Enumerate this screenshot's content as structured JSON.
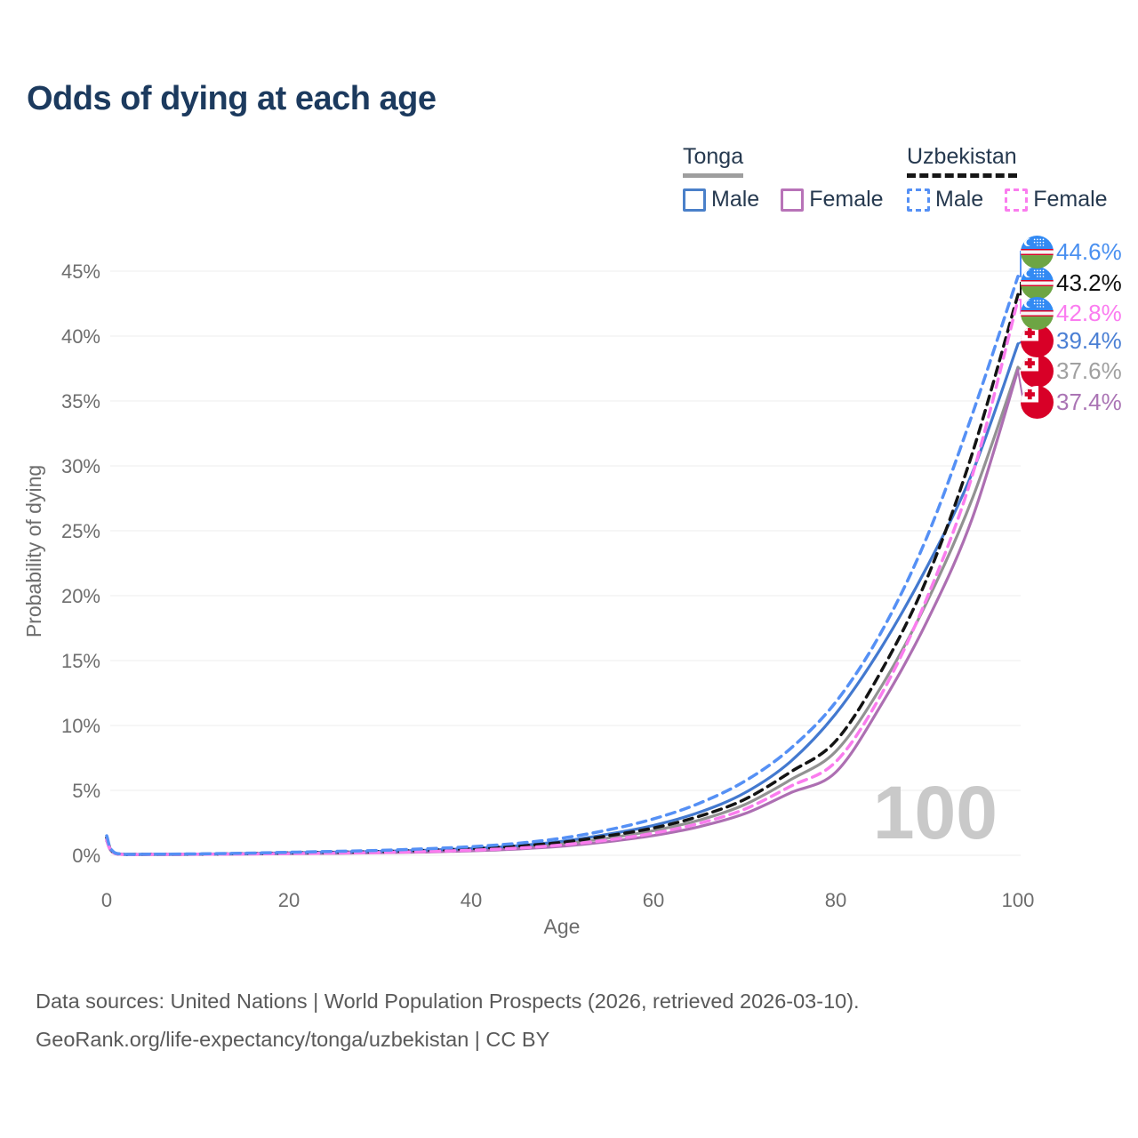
{
  "title": "Odds of dying at each age",
  "legend": {
    "tonga": {
      "label": "Tonga",
      "male": "Male",
      "female": "Female"
    },
    "uzbekistan": {
      "label": "Uzbekistan",
      "male": "Male",
      "female": "Female"
    }
  },
  "watermark": "100",
  "footer": {
    "line1": "Data sources: United Nations | World Population Prospects (2026, retrieved 2026-03-10).",
    "line2": "GeoRank.org/life-expectancy/tonga/uzbekistan | CC BY"
  },
  "colors": {
    "title_text": "#1c3a5e",
    "legend_text": "#26394f",
    "axis_text": "#6d6d6d",
    "gridline": "#ececec",
    "watermark": "#c9c9c9",
    "tonga_rule": "#9e9e9e",
    "uzbekistan_rule": "#161616"
  },
  "chart_data": {
    "type": "line",
    "title": "Odds of dying at each age",
    "xlabel": "Age",
    "ylabel": "Probability of dying",
    "xlim": [
      0,
      100
    ],
    "ylim_pct": [
      0,
      45
    ],
    "grid": "horizontal",
    "legend_position": "top-right",
    "xticks": [
      "0",
      "20",
      "40",
      "60",
      "80",
      "100"
    ],
    "xtick_values": [
      0,
      20,
      40,
      60,
      80,
      100
    ],
    "yticks": [
      "0%",
      "5%",
      "10%",
      "15%",
      "20%",
      "25%",
      "30%",
      "35%",
      "40%",
      "45%"
    ],
    "ytick_values": [
      0,
      5,
      10,
      15,
      20,
      25,
      30,
      35,
      40,
      45
    ],
    "ages": [
      0,
      1,
      5,
      10,
      15,
      20,
      25,
      30,
      35,
      40,
      45,
      50,
      55,
      60,
      65,
      70,
      75,
      80,
      85,
      90,
      95,
      100
    ],
    "series": [
      {
        "id": "tonga-both",
        "name": "Tonga Both sexes",
        "country": "Tonga",
        "sex": "Both sexes",
        "flag": "tonga",
        "dash": false,
        "color": "#929292",
        "label_color": "#a0a0a0",
        "end_value": "37.6%",
        "end_pct": 37.6,
        "label_row": 4,
        "values": [
          1.2,
          0.13,
          0.07,
          0.08,
          0.11,
          0.16,
          0.2,
          0.25,
          0.32,
          0.43,
          0.6,
          0.88,
          1.32,
          1.9,
          2.7,
          3.9,
          5.8,
          8.0,
          13.0,
          19.5,
          27.5,
          37.6
        ]
      },
      {
        "id": "tonga-female",
        "name": "Tonga Female",
        "country": "Tonga",
        "sex": "Female",
        "flag": "tonga",
        "dash": false,
        "color": "#ad6fb2",
        "label_color": "#aa74b4",
        "end_value": "37.4%",
        "end_pct": 37.4,
        "label_row": 5,
        "values": [
          1.1,
          0.11,
          0.06,
          0.07,
          0.09,
          0.12,
          0.15,
          0.19,
          0.25,
          0.34,
          0.48,
          0.7,
          1.05,
          1.52,
          2.2,
          3.2,
          4.8,
          6.4,
          11.6,
          18.0,
          26.0,
          37.4
        ]
      },
      {
        "id": "tonga-male",
        "name": "Tonga Male",
        "country": "Tonga",
        "sex": "Male",
        "flag": "tonga",
        "dash": false,
        "color": "#4379cf",
        "label_color": "#4a7fd4",
        "end_value": "39.4%",
        "end_pct": 39.4,
        "label_row": 3,
        "values": [
          1.3,
          0.15,
          0.08,
          0.09,
          0.13,
          0.19,
          0.24,
          0.3,
          0.39,
          0.52,
          0.73,
          1.08,
          1.62,
          2.3,
          3.3,
          4.8,
          7.2,
          10.9,
          16.0,
          22.2,
          29.5,
          39.4
        ]
      },
      {
        "id": "uzbekistan-both",
        "name": "Uzbekistan Both sexes",
        "country": "Uzbekistan",
        "sex": "Both sexes",
        "flag": "uzbekistan",
        "dash": true,
        "color": "#141414",
        "label_color": "#0f0f0f",
        "end_value": "43.2%",
        "end_pct": 43.2,
        "label_row": 1,
        "values": [
          1.35,
          0.14,
          0.08,
          0.09,
          0.13,
          0.18,
          0.23,
          0.29,
          0.38,
          0.5,
          0.7,
          1.0,
          1.5,
          2.1,
          3.0,
          4.3,
          6.4,
          8.8,
          14.2,
          21.3,
          31.0,
          43.2
        ]
      },
      {
        "id": "uzbekistan-female",
        "name": "Uzbekistan Female",
        "country": "Uzbekistan",
        "sex": "Female",
        "flag": "uzbekistan",
        "dash": true,
        "color": "#fa7cee",
        "label_color": "#fb7cf0",
        "end_value": "42.8%",
        "end_pct": 42.8,
        "label_row": 2,
        "values": [
          1.2,
          0.12,
          0.07,
          0.08,
          0.1,
          0.13,
          0.17,
          0.22,
          0.29,
          0.39,
          0.55,
          0.8,
          1.18,
          1.7,
          2.45,
          3.55,
          5.3,
          7.2,
          12.4,
          19.8,
          29.3,
          42.8
        ]
      },
      {
        "id": "uzbekistan-male",
        "name": "Uzbekistan Male",
        "country": "Uzbekistan",
        "sex": "Male",
        "flag": "uzbekistan",
        "dash": true,
        "color": "#5590f5",
        "label_color": "#4a90f0",
        "end_value": "44.6%",
        "end_pct": 44.6,
        "label_row": 0,
        "values": [
          1.5,
          0.16,
          0.09,
          0.11,
          0.16,
          0.23,
          0.3,
          0.38,
          0.5,
          0.66,
          0.92,
          1.32,
          1.95,
          2.8,
          4.0,
          5.7,
          8.2,
          11.8,
          17.2,
          24.5,
          34.0,
          44.6
        ]
      }
    ]
  }
}
